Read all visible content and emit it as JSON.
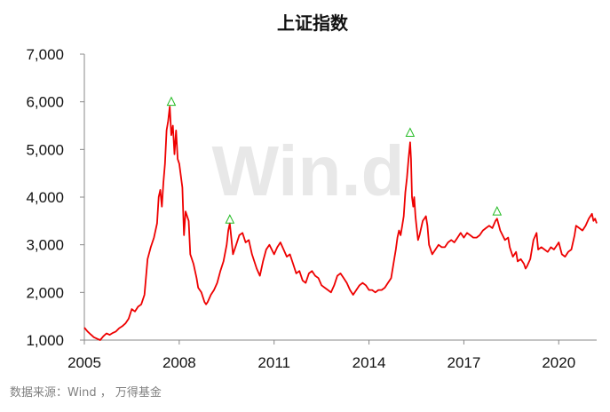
{
  "chart_data": {
    "type": "line",
    "title": "上证指数",
    "xlabel": "",
    "ylabel": "",
    "xlim": [
      2005.0,
      2021.2
    ],
    "ylim": [
      1000,
      7000
    ],
    "xticks": [
      2005,
      2008,
      2011,
      2014,
      2017,
      2020
    ],
    "xtick_labels": [
      "2005",
      "2008",
      "2011",
      "2014",
      "2017",
      "2020"
    ],
    "yticks": [
      1000,
      2000,
      3000,
      4000,
      5000,
      6000,
      7000
    ],
    "ytick_labels": [
      "1,000",
      "2,000",
      "3,000",
      "4,000",
      "5,000",
      "6,000",
      "7,000"
    ],
    "grid": false,
    "line_color": "#ee0000",
    "marker_color": "#22bb22",
    "series": [
      {
        "values": [
          [
            2005.0,
            1260
          ],
          [
            2005.1,
            1180
          ],
          [
            2005.2,
            1120
          ],
          [
            2005.3,
            1060
          ],
          [
            2005.4,
            1030
          ],
          [
            2005.5,
            1000
          ],
          [
            2005.6,
            1080
          ],
          [
            2005.7,
            1140
          ],
          [
            2005.8,
            1110
          ],
          [
            2005.9,
            1150
          ],
          [
            2006.0,
            1180
          ],
          [
            2006.1,
            1250
          ],
          [
            2006.2,
            1290
          ],
          [
            2006.3,
            1350
          ],
          [
            2006.4,
            1450
          ],
          [
            2006.5,
            1650
          ],
          [
            2006.6,
            1600
          ],
          [
            2006.7,
            1700
          ],
          [
            2006.8,
            1750
          ],
          [
            2006.9,
            1950
          ],
          [
            2007.0,
            2700
          ],
          [
            2007.1,
            2950
          ],
          [
            2007.2,
            3150
          ],
          [
            2007.3,
            3450
          ],
          [
            2007.35,
            4000
          ],
          [
            2007.4,
            4150
          ],
          [
            2007.45,
            3800
          ],
          [
            2007.5,
            4300
          ],
          [
            2007.55,
            4700
          ],
          [
            2007.6,
            5400
          ],
          [
            2007.65,
            5600
          ],
          [
            2007.7,
            5900
          ],
          [
            2007.75,
            5300
          ],
          [
            2007.8,
            5500
          ],
          [
            2007.85,
            4900
          ],
          [
            2007.9,
            5400
          ],
          [
            2007.95,
            4800
          ],
          [
            2008.0,
            4700
          ],
          [
            2008.1,
            4200
          ],
          [
            2008.15,
            3200
          ],
          [
            2008.2,
            3700
          ],
          [
            2008.3,
            3500
          ],
          [
            2008.35,
            2800
          ],
          [
            2008.45,
            2600
          ],
          [
            2008.55,
            2300
          ],
          [
            2008.6,
            2100
          ],
          [
            2008.7,
            2000
          ],
          [
            2008.8,
            1800
          ],
          [
            2008.85,
            1750
          ],
          [
            2008.9,
            1800
          ],
          [
            2009.0,
            1950
          ],
          [
            2009.1,
            2050
          ],
          [
            2009.2,
            2200
          ],
          [
            2009.3,
            2450
          ],
          [
            2009.4,
            2650
          ],
          [
            2009.5,
            3000
          ],
          [
            2009.55,
            3300
          ],
          [
            2009.6,
            3450
          ],
          [
            2009.7,
            2800
          ],
          [
            2009.8,
            3000
          ],
          [
            2009.9,
            3200
          ],
          [
            2010.0,
            3250
          ],
          [
            2010.1,
            3050
          ],
          [
            2010.2,
            3100
          ],
          [
            2010.3,
            2800
          ],
          [
            2010.45,
            2500
          ],
          [
            2010.55,
            2350
          ],
          [
            2010.65,
            2650
          ],
          [
            2010.75,
            2900
          ],
          [
            2010.85,
            3000
          ],
          [
            2011.0,
            2800
          ],
          [
            2011.1,
            2950
          ],
          [
            2011.2,
            3050
          ],
          [
            2011.3,
            2900
          ],
          [
            2011.4,
            2750
          ],
          [
            2011.5,
            2800
          ],
          [
            2011.6,
            2600
          ],
          [
            2011.7,
            2400
          ],
          [
            2011.8,
            2450
          ],
          [
            2011.9,
            2250
          ],
          [
            2012.0,
            2200
          ],
          [
            2012.1,
            2400
          ],
          [
            2012.2,
            2450
          ],
          [
            2012.3,
            2350
          ],
          [
            2012.4,
            2300
          ],
          [
            2012.5,
            2150
          ],
          [
            2012.6,
            2100
          ],
          [
            2012.7,
            2050
          ],
          [
            2012.8,
            2000
          ],
          [
            2012.9,
            2150
          ],
          [
            2013.0,
            2350
          ],
          [
            2013.1,
            2400
          ],
          [
            2013.2,
            2300
          ],
          [
            2013.3,
            2200
          ],
          [
            2013.4,
            2050
          ],
          [
            2013.5,
            1950
          ],
          [
            2013.6,
            2050
          ],
          [
            2013.7,
            2150
          ],
          [
            2013.8,
            2200
          ],
          [
            2013.9,
            2150
          ],
          [
            2014.0,
            2050
          ],
          [
            2014.1,
            2050
          ],
          [
            2014.2,
            2000
          ],
          [
            2014.3,
            2050
          ],
          [
            2014.4,
            2050
          ],
          [
            2014.5,
            2100
          ],
          [
            2014.6,
            2200
          ],
          [
            2014.7,
            2300
          ],
          [
            2014.8,
            2700
          ],
          [
            2014.85,
            2900
          ],
          [
            2014.9,
            3150
          ],
          [
            2014.95,
            3300
          ],
          [
            2015.0,
            3200
          ],
          [
            2015.05,
            3400
          ],
          [
            2015.1,
            3600
          ],
          [
            2015.15,
            4100
          ],
          [
            2015.2,
            4400
          ],
          [
            2015.25,
            4800
          ],
          [
            2015.3,
            5150
          ],
          [
            2015.33,
            4800
          ],
          [
            2015.36,
            4000
          ],
          [
            2015.4,
            3800
          ],
          [
            2015.43,
            4000
          ],
          [
            2015.47,
            3600
          ],
          [
            2015.5,
            3400
          ],
          [
            2015.55,
            3100
          ],
          [
            2015.6,
            3200
          ],
          [
            2015.7,
            3500
          ],
          [
            2015.75,
            3550
          ],
          [
            2015.8,
            3600
          ],
          [
            2015.85,
            3400
          ],
          [
            2015.9,
            3000
          ],
          [
            2016.0,
            2800
          ],
          [
            2016.1,
            2900
          ],
          [
            2016.2,
            3000
          ],
          [
            2016.3,
            2950
          ],
          [
            2016.4,
            2950
          ],
          [
            2016.5,
            3050
          ],
          [
            2016.6,
            3100
          ],
          [
            2016.7,
            3050
          ],
          [
            2016.8,
            3150
          ],
          [
            2016.9,
            3250
          ],
          [
            2017.0,
            3150
          ],
          [
            2017.1,
            3250
          ],
          [
            2017.2,
            3200
          ],
          [
            2017.3,
            3150
          ],
          [
            2017.4,
            3150
          ],
          [
            2017.5,
            3200
          ],
          [
            2017.6,
            3300
          ],
          [
            2017.7,
            3350
          ],
          [
            2017.8,
            3400
          ],
          [
            2017.9,
            3350
          ],
          [
            2018.0,
            3500
          ],
          [
            2018.05,
            3550
          ],
          [
            2018.15,
            3300
          ],
          [
            2018.3,
            3100
          ],
          [
            2018.4,
            3150
          ],
          [
            2018.45,
            2950
          ],
          [
            2018.55,
            2750
          ],
          [
            2018.65,
            2850
          ],
          [
            2018.7,
            2650
          ],
          [
            2018.8,
            2700
          ],
          [
            2018.9,
            2600
          ],
          [
            2018.95,
            2500
          ],
          [
            2019.0,
            2550
          ],
          [
            2019.1,
            2700
          ],
          [
            2019.2,
            3100
          ],
          [
            2019.3,
            3250
          ],
          [
            2019.35,
            2900
          ],
          [
            2019.45,
            2950
          ],
          [
            2019.55,
            2900
          ],
          [
            2019.65,
            2850
          ],
          [
            2019.75,
            2950
          ],
          [
            2019.85,
            2900
          ],
          [
            2019.95,
            3000
          ],
          [
            2020.0,
            3050
          ],
          [
            2020.1,
            2800
          ],
          [
            2020.2,
            2750
          ],
          [
            2020.3,
            2850
          ],
          [
            2020.4,
            2900
          ],
          [
            2020.5,
            3200
          ],
          [
            2020.55,
            3400
          ],
          [
            2020.65,
            3350
          ],
          [
            2020.75,
            3300
          ],
          [
            2020.85,
            3400
          ],
          [
            2020.95,
            3550
          ],
          [
            2021.05,
            3650
          ],
          [
            2021.1,
            3500
          ],
          [
            2021.15,
            3550
          ],
          [
            2021.2,
            3450
          ]
        ]
      }
    ],
    "peak_markers": [
      {
        "x": 2007.75,
        "y": 6000
      },
      {
        "x": 2009.6,
        "y": 3530
      },
      {
        "x": 2015.3,
        "y": 5350
      },
      {
        "x": 2018.05,
        "y": 3700
      }
    ],
    "watermark": "Win.d"
  },
  "source_note": "数据来源：Wind ， 万得基金"
}
